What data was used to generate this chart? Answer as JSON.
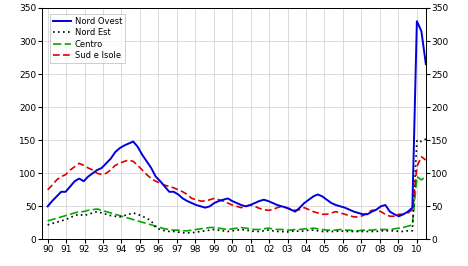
{
  "legend_labels": [
    "Nord Ovest",
    "Nord Est",
    "Centro",
    "Sud e Isole"
  ],
  "legend_colors": [
    "#0000dd",
    "#000000",
    "#00aa00",
    "#dd0000"
  ],
  "ylim": [
    0,
    350
  ],
  "yticks": [
    0,
    50,
    100,
    150,
    200,
    250,
    300,
    350
  ],
  "xtick_labels": [
    "90",
    "91",
    "92",
    "93",
    "94",
    "95",
    "96",
    "97",
    "98",
    "99",
    "00",
    "01",
    "02",
    "03",
    "04",
    "05",
    "06",
    "07",
    "08",
    "09",
    "10"
  ],
  "xtick_positions": [
    1990,
    1991,
    1992,
    1993,
    1994,
    1995,
    1996,
    1997,
    1998,
    1999,
    2000,
    2001,
    2002,
    2003,
    2004,
    2005,
    2006,
    2007,
    2008,
    2009,
    2010
  ],
  "nord_ovest": [
    50,
    58,
    65,
    72,
    72,
    80,
    88,
    92,
    88,
    95,
    100,
    105,
    108,
    115,
    122,
    132,
    138,
    142,
    145,
    148,
    140,
    128,
    118,
    108,
    95,
    88,
    80,
    72,
    72,
    68,
    62,
    58,
    55,
    52,
    50,
    48,
    50,
    55,
    58,
    60,
    62,
    58,
    55,
    52,
    50,
    52,
    55,
    58,
    60,
    58,
    55,
    52,
    50,
    48,
    45,
    42,
    48,
    55,
    60,
    65,
    68,
    65,
    60,
    55,
    52,
    50,
    48,
    45,
    42,
    40,
    38,
    38,
    42,
    45,
    50,
    52,
    42,
    38,
    35,
    38,
    42,
    48,
    330,
    315,
    265
  ],
  "nord_est": [
    22,
    24,
    26,
    28,
    30,
    33,
    36,
    38,
    36,
    38,
    40,
    42,
    40,
    38,
    36,
    35,
    34,
    36,
    38,
    40,
    38,
    35,
    32,
    28,
    18,
    15,
    13,
    12,
    12,
    11,
    10,
    10,
    10,
    11,
    12,
    13,
    14,
    15,
    14,
    13,
    12,
    13,
    14,
    15,
    14,
    13,
    12,
    12,
    13,
    14,
    13,
    12,
    12,
    11,
    12,
    13,
    12,
    13,
    14,
    14,
    13,
    12,
    12,
    12,
    12,
    13,
    12,
    12,
    12,
    12,
    12,
    12,
    12,
    12,
    13,
    13,
    13,
    13,
    12,
    12,
    13,
    13,
    150,
    148,
    152
  ],
  "centro": [
    28,
    30,
    32,
    34,
    36,
    38,
    40,
    42,
    42,
    44,
    45,
    46,
    44,
    42,
    40,
    38,
    36,
    34,
    32,
    30,
    28,
    26,
    24,
    22,
    20,
    18,
    16,
    15,
    14,
    14,
    13,
    13,
    14,
    15,
    16,
    17,
    18,
    18,
    17,
    16,
    15,
    16,
    17,
    18,
    17,
    16,
    15,
    15,
    16,
    17,
    16,
    15,
    15,
    14,
    14,
    15,
    15,
    16,
    16,
    17,
    16,
    15,
    14,
    14,
    14,
    15,
    14,
    14,
    13,
    13,
    14,
    14,
    14,
    15,
    15,
    15,
    15,
    16,
    17,
    18,
    20,
    22,
    95,
    90,
    95
  ],
  "sud_isole": [
    75,
    82,
    90,
    95,
    98,
    105,
    110,
    115,
    112,
    108,
    105,
    100,
    98,
    100,
    105,
    112,
    115,
    118,
    120,
    118,
    112,
    105,
    98,
    92,
    88,
    85,
    82,
    80,
    78,
    75,
    72,
    68,
    62,
    60,
    58,
    58,
    60,
    62,
    60,
    58,
    55,
    52,
    50,
    48,
    50,
    52,
    50,
    47,
    45,
    44,
    45,
    48,
    50,
    48,
    46,
    44,
    45,
    48,
    45,
    42,
    40,
    38,
    38,
    40,
    42,
    40,
    38,
    36,
    34,
    34,
    36,
    40,
    44,
    44,
    42,
    38,
    35,
    35,
    38,
    38,
    40,
    45,
    110,
    125,
    120
  ],
  "background_color": "#ffffff",
  "grid_color": "#cccccc"
}
